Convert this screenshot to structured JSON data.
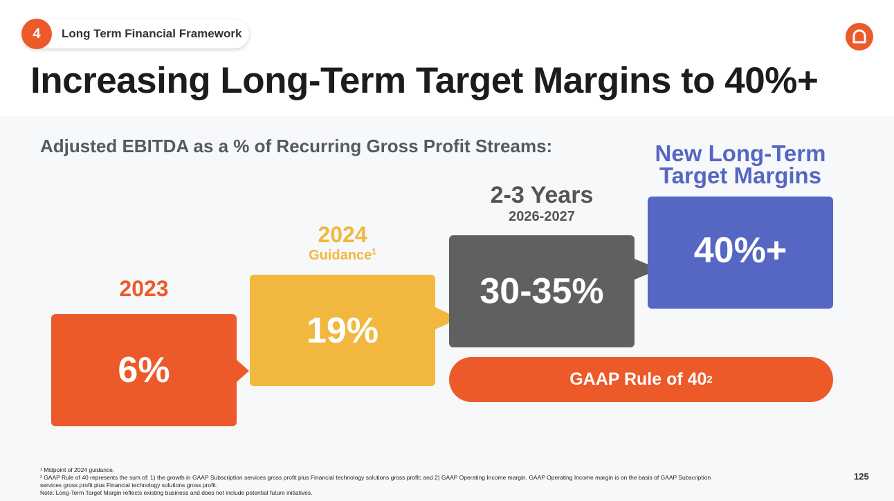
{
  "header": {
    "section_number": "4",
    "section_label": "Long Term Financial Framework",
    "title": "Increasing Long-Term Target Margins to 40%+"
  },
  "logo": {
    "icon": "company-logo-icon"
  },
  "subtitle": "Adjusted EBITDA as a % of Recurring Gross Profit Streams:",
  "steps": [
    {
      "heading": "2023",
      "value": "6%",
      "color": "#ec5a2a"
    },
    {
      "heading": "2024",
      "subheading": "Guidance",
      "subheading_note": "1",
      "value": "19%",
      "color": "#f2b73f"
    },
    {
      "heading": "2-3 Years",
      "subheading": "2026-2027",
      "value": "30-35%",
      "color": "#606060"
    },
    {
      "heading": "New Long-Term Target Margins",
      "value": "40%+",
      "color": "#5566c3"
    }
  ],
  "gaap_rule": {
    "label": "GAAP Rule of 40",
    "note": "2",
    "color": "#ec5a2a"
  },
  "footnotes": [
    "¹ Midpoint of 2024 guidance.",
    "² GAAP Rule of 40 represents the sum of: 1) the growth in GAAP Subscription services gross profit plus Financial technology solutions gross profit; and 2) GAAP Operating Income margin.  GAAP Operating Income margin is on the basis of GAAP Subscription services gross profit plus Financial technology solutions gross profit.",
    "Note: Long-Term Target Margin reflects existing business and does not include potential future initiatives."
  ],
  "page_number": "125"
}
